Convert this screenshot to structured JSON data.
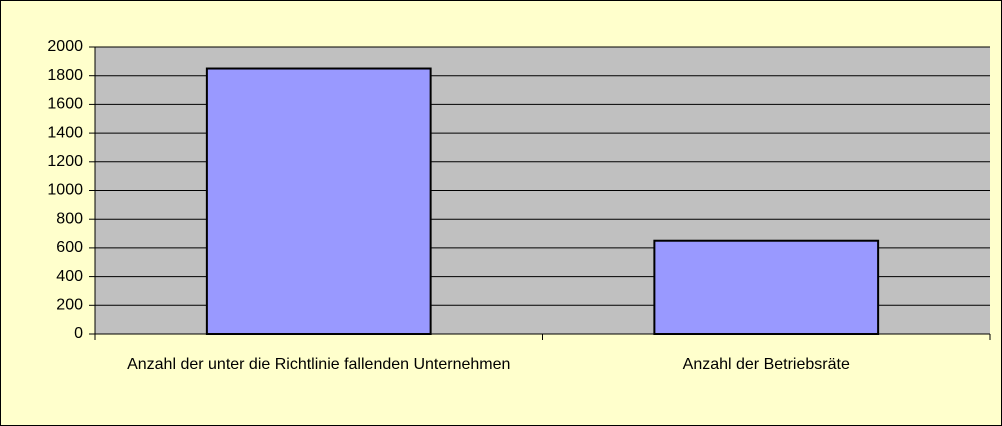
{
  "chart_data": {
    "type": "bar",
    "categories": [
      "Anzahl der unter die Richtlinie fallenden Unternehmen",
      "Anzahl der Betriebsräte"
    ],
    "values": [
      1850,
      650
    ],
    "color": "#9999ff",
    "ylim": [
      0,
      2000
    ],
    "yticks": [
      0,
      200,
      400,
      600,
      800,
      1000,
      1200,
      1400,
      1600,
      1800,
      2000
    ],
    "grid": true
  }
}
